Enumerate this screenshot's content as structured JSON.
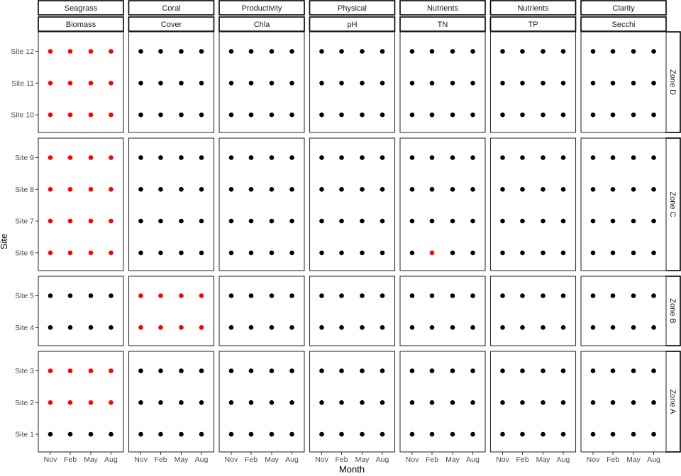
{
  "chart_data": {
    "type": "scatter",
    "xlabel": "Month",
    "ylabel": "Site",
    "x_categories": [
      "Nov",
      "Feb",
      "May",
      "Aug"
    ],
    "grid": false,
    "colors": {
      "flagged": "#ff0000",
      "normal": "#000000"
    },
    "columns": [
      {
        "group": "Seagrass",
        "variable": "Biomass"
      },
      {
        "group": "Coral",
        "variable": "Cover"
      },
      {
        "group": "Productivity",
        "variable": "Chla"
      },
      {
        "group": "Physical",
        "variable": "pH"
      },
      {
        "group": "Nutrients",
        "variable": "TN"
      },
      {
        "group": "Nutrients",
        "variable": "TP"
      },
      {
        "group": "Clarity",
        "variable": "Secchi"
      }
    ],
    "rows": [
      {
        "zone": "Zone D",
        "sites": [
          "Site 12",
          "Site 11",
          "Site 10"
        ]
      },
      {
        "zone": "Zone C",
        "sites": [
          "Site 9",
          "Site 8",
          "Site 7",
          "Site 6"
        ]
      },
      {
        "zone": "Zone B",
        "sites": [
          "Site 5",
          "Site 4"
        ]
      },
      {
        "zone": "Zone A",
        "sites": [
          "Site 3",
          "Site 2",
          "Site 1"
        ]
      }
    ],
    "flagged_points": [
      {
        "column": "Biomass",
        "sites": [
          "Site 12",
          "Site 11",
          "Site 10",
          "Site 9",
          "Site 8",
          "Site 7",
          "Site 6",
          "Site 3",
          "Site 2"
        ],
        "months": [
          "Nov",
          "Feb",
          "May",
          "Aug"
        ]
      },
      {
        "column": "Cover",
        "sites": [
          "Site 5",
          "Site 4"
        ],
        "months": [
          "Nov",
          "Feb",
          "May",
          "Aug"
        ]
      },
      {
        "column": "TN",
        "sites": [
          "Site 6"
        ],
        "months": [
          "Feb"
        ]
      }
    ]
  }
}
